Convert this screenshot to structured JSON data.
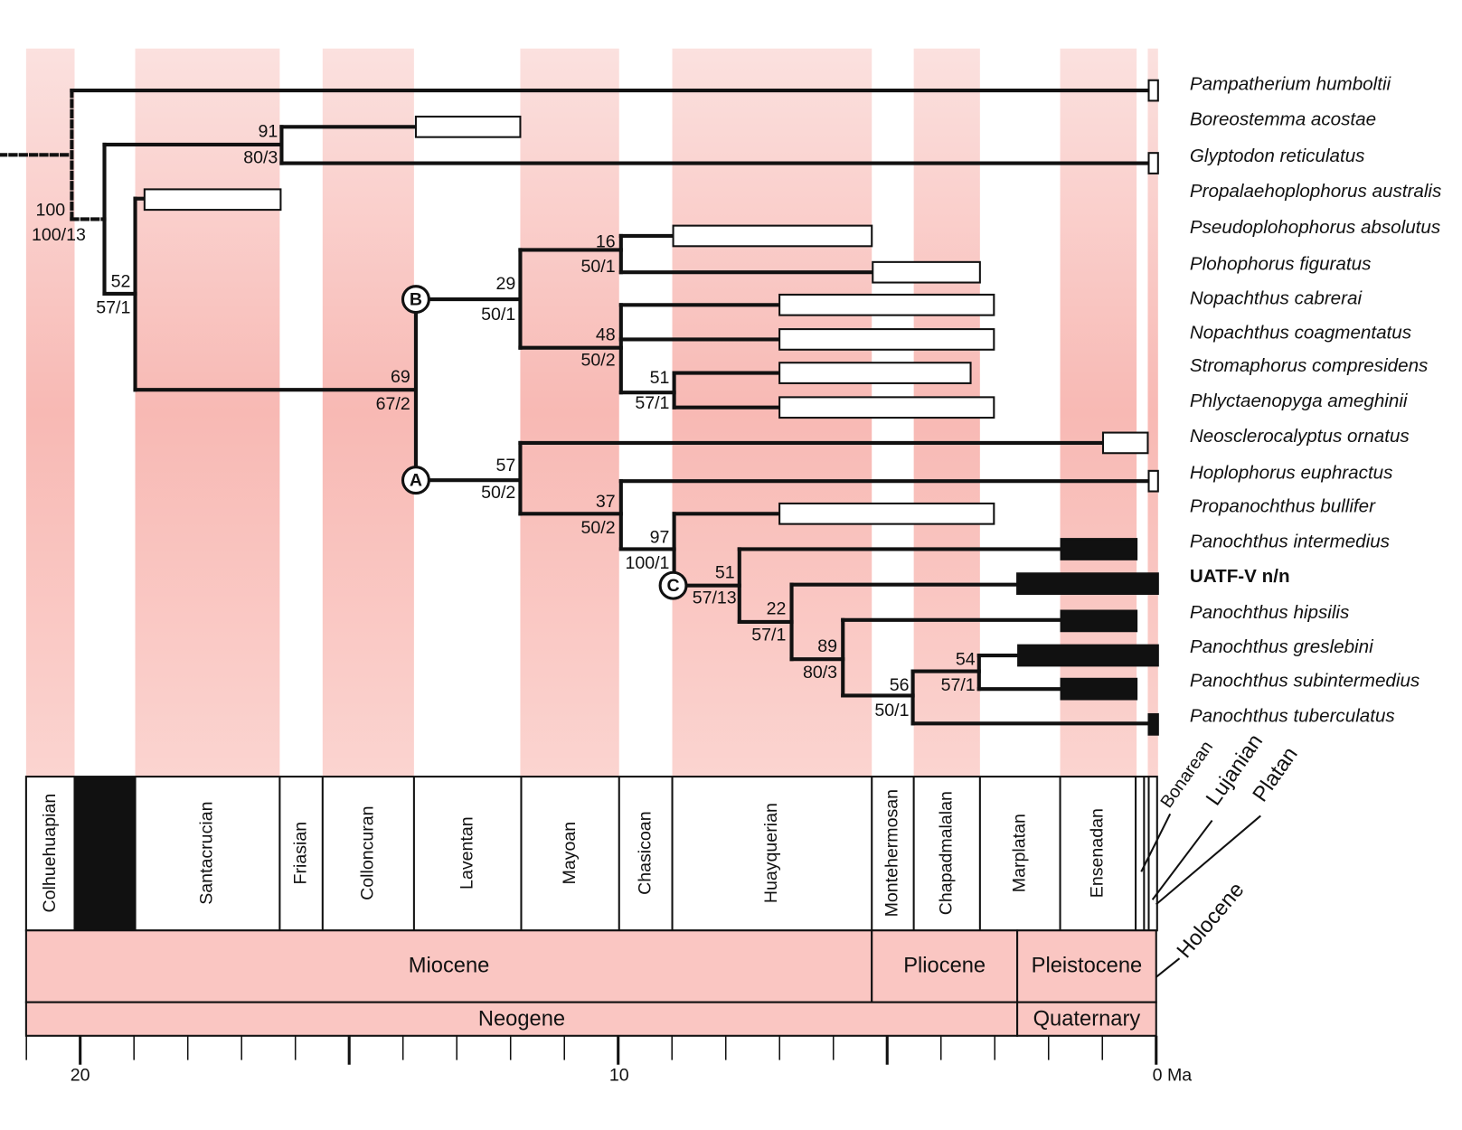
{
  "taxa": [
    {
      "name": "Pampatherium humboltii"
    },
    {
      "name": "Boreostemma acostae"
    },
    {
      "name": "Glyptodon reticulatus"
    },
    {
      "name": "Propalaehoplophorus australis"
    },
    {
      "name": "Pseudoplohophorus absolutus"
    },
    {
      "name": "Plohophorus figuratus"
    },
    {
      "name": "Nopachthus cabrerai"
    },
    {
      "name": "Nopachthus coagmentatus"
    },
    {
      "name": "Stromaphorus compresidens"
    },
    {
      "name": "Phlyctaenopyga ameghinii"
    },
    {
      "name": "Neosclerocalyptus ornatus"
    },
    {
      "name": "Hoplophorus euphractus"
    },
    {
      "name": "Propanochthus bullifer"
    },
    {
      "name": "Panochthus intermedius"
    },
    {
      "name": "UATF-V n/n",
      "bold": true
    },
    {
      "name": "Panochthus hipsilis"
    },
    {
      "name": "Panochthus greslebini"
    },
    {
      "name": "Panochthus subintermedius"
    },
    {
      "name": "Panochthus tuberculatus"
    }
  ],
  "supports": [
    {
      "top": "100",
      "bottom": "100/13"
    },
    {
      "top": "91",
      "bottom": "80/3"
    },
    {
      "top": "52",
      "bottom": "57/1"
    },
    {
      "top": "69",
      "bottom": "67/2"
    },
    {
      "top": "29",
      "bottom": "50/1"
    },
    {
      "top": "16",
      "bottom": "50/1"
    },
    {
      "top": "48",
      "bottom": "50/2"
    },
    {
      "top": "51",
      "bottom": "57/1"
    },
    {
      "top": "57",
      "bottom": "50/2"
    },
    {
      "top": "37",
      "bottom": "50/2"
    },
    {
      "top": "97",
      "bottom": "100/1"
    },
    {
      "top": "51",
      "bottom": "57/13"
    },
    {
      "top": "22",
      "bottom": "57/1"
    },
    {
      "top": "89",
      "bottom": "80/3"
    },
    {
      "top": "56",
      "bottom": "50/1"
    },
    {
      "top": "54",
      "bottom": "57/1"
    }
  ],
  "clades": [
    "B",
    "A",
    "C"
  ],
  "stages": [
    "Colhuehuapian",
    "Santacrucian",
    "Friasian",
    "Colloncuran",
    "Laventan",
    "Mayoan",
    "Chasicoan",
    "Huayquerian",
    "Montehermosan",
    "Chapadmalalan",
    "Marplatan",
    "Ensenadan",
    "Bonarean",
    "Lujanian",
    "Platan"
  ],
  "epochs": [
    "Miocene",
    "Pliocene",
    "Pleistocene",
    "Holocene"
  ],
  "periods": [
    "Neogene",
    "Quaternary"
  ],
  "axis_labels": [
    "20",
    "10",
    "0 Ma"
  ]
}
